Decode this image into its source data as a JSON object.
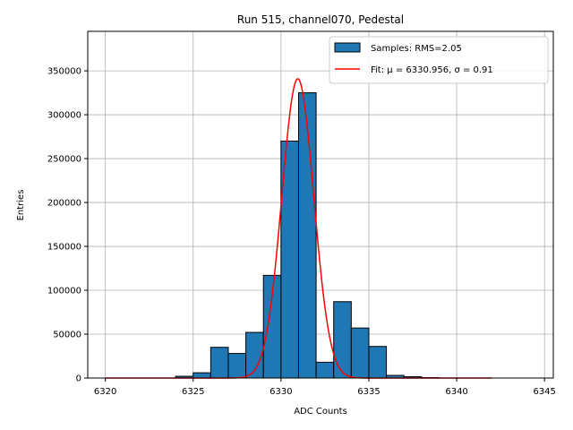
{
  "chart_data": {
    "type": "bar",
    "title": "Run 515, channel070, Pedestal",
    "xlabel": "ADC Counts",
    "ylabel": "Entries",
    "xlim": [
      6319,
      6345.5
    ],
    "ylim": [
      0,
      395000
    ],
    "grid": true,
    "xticks": [
      6320,
      6325,
      6330,
      6335,
      6340,
      6345
    ],
    "yticks": [
      0,
      50000,
      100000,
      150000,
      200000,
      250000,
      300000,
      350000
    ],
    "histogram": {
      "name": "Samples: RMS=2.05",
      "color": "#1f77b4",
      "bin_width": 1,
      "bin_lefts": [
        6320,
        6321,
        6322,
        6323,
        6324,
        6325,
        6326,
        6327,
        6328,
        6329,
        6330,
        6331,
        6332,
        6333,
        6334,
        6335,
        6336,
        6337,
        6338,
        6339,
        6340,
        6341
      ],
      "values": [
        0,
        0,
        0,
        0,
        2000,
        6000,
        35000,
        28000,
        52000,
        117000,
        270000,
        325000,
        18000,
        87000,
        57000,
        36000,
        3000,
        1500,
        500,
        0,
        0,
        0
      ]
    },
    "fit": {
      "name": "Fit: μ = 6330.956, σ = 0.91",
      "color": "#ff0000",
      "mu": 6330.956,
      "sigma": 0.91,
      "amplitude": 341000,
      "x_range": [
        6320,
        6342
      ]
    },
    "legend": {
      "placement": "top-right",
      "entries": [
        "Samples: RMS=2.05",
        "Fit: μ = 6330.956, σ = 0.91"
      ]
    }
  }
}
